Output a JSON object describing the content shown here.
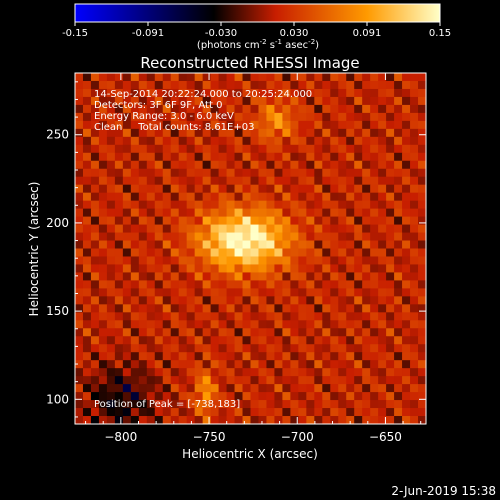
{
  "colorbar": {
    "ticks": [
      "-0.15",
      "-0.091",
      "-0.030",
      "0.030",
      "0.091",
      "0.15"
    ],
    "units_label": "(photons cm",
    "units_exp1": "-2",
    "units_mid": " s",
    "units_exp2": "-1",
    "units_tail": " asec",
    "units_exp3": "-2",
    "units_close": ")"
  },
  "chart_data": {
    "type": "heatmap",
    "title": "Reconstructed RHESSI Image",
    "xlabel": "Heliocentric X (arcsec)",
    "ylabel": "Heliocentric Y (arcsec)",
    "xlim": [
      -826,
      -627
    ],
    "ylim": [
      86,
      285
    ],
    "xticks": [
      -800,
      -750,
      -700,
      -650
    ],
    "yticks": [
      100,
      150,
      200,
      250
    ],
    "xtick_labels": [
      "−800",
      "−750",
      "−700",
      "−650"
    ],
    "ytick_labels": [
      "100",
      "150",
      "200",
      "250"
    ],
    "color_range": [
      -0.15,
      0.15
    ],
    "colormap": [
      "#0000ff",
      "#000000",
      "#c81e00",
      "#ff9a00",
      "#ffffc8"
    ],
    "peak_position": [
      -738,
      183
    ],
    "annotations": [
      "14-Sep-2014 20:22:24.000 to 20:25:24.000",
      "Detectors: 3F 6F 9F, Att 0",
      "Energy Range: 3.0 - 6.0 keV",
      "Clean     Total counts: 8.61E+03",
      "Position of Peak = [-738,183]"
    ]
  },
  "footer": {
    "date": "2-Jun-2019 15:38"
  }
}
